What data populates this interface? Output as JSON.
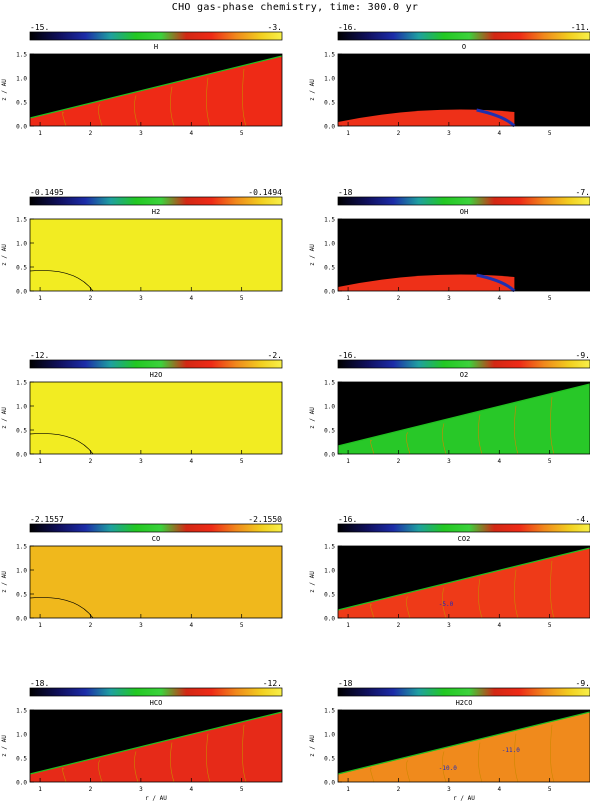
{
  "title": "CHO gas-phase chemistry, time: 300.0 yr",
  "chart_data": [
    {
      "type": "heatmap",
      "species": "H",
      "cbar_min": "-15.",
      "cbar_max": "-3.",
      "xlabel": "",
      "ylabel": "z / AU",
      "xticks": [
        "1",
        "2",
        "3",
        "4",
        "5"
      ],
      "yticks": [
        "0.0",
        "0.5",
        "1.0",
        "1.5"
      ],
      "xlim": [
        0.8,
        5.8
      ],
      "ylim": [
        0,
        1.5
      ],
      "fill": "#ee2a16",
      "dark_region": "upper-left",
      "contour_labels": []
    },
    {
      "type": "heatmap",
      "species": "O",
      "cbar_min": "-16.",
      "cbar_max": "-11.",
      "xlabel": "",
      "ylabel": "z / AU",
      "xticks": [
        "1",
        "2",
        "3",
        "4",
        "5"
      ],
      "yticks": [
        "0.0",
        "0.5",
        "1.0",
        "1.5"
      ],
      "xlim": [
        0.8,
        5.8
      ],
      "ylim": [
        0,
        1.5
      ],
      "fill": "#000000",
      "dark_region": "most",
      "contour_labels": []
    },
    {
      "type": "heatmap",
      "species": "H2",
      "cbar_min": "-0.1495",
      "cbar_max": "-0.1494",
      "xlabel": "",
      "ylabel": "z / AU",
      "xticks": [
        "1",
        "2",
        "3",
        "4",
        "5"
      ],
      "yticks": [
        "0.0",
        "0.5",
        "1.0",
        "1.5"
      ],
      "xlim": [
        0.8,
        5.8
      ],
      "ylim": [
        0,
        1.5
      ],
      "fill": "#f2ec22",
      "dark_region": "none",
      "contour_labels": []
    },
    {
      "type": "heatmap",
      "species": "OH",
      "cbar_min": "-18",
      "cbar_max": "-7.",
      "xlabel": "",
      "ylabel": "z / AU",
      "xticks": [
        "1",
        "2",
        "3",
        "4",
        "5"
      ],
      "yticks": [
        "0.0",
        "0.5",
        "1.0",
        "1.5"
      ],
      "xlim": [
        0.8,
        5.8
      ],
      "ylim": [
        0,
        1.5
      ],
      "fill": "#000000",
      "dark_region": "most",
      "contour_labels": []
    },
    {
      "type": "heatmap",
      "species": "H2O",
      "cbar_min": "-12.",
      "cbar_max": "-2.",
      "xlabel": "",
      "ylabel": "z / AU",
      "xticks": [
        "1",
        "2",
        "3",
        "4",
        "5"
      ],
      "yticks": [
        "0.0",
        "0.5",
        "1.0",
        "1.5"
      ],
      "xlim": [
        0.8,
        5.8
      ],
      "ylim": [
        0,
        1.5
      ],
      "fill": "#f2ec22",
      "dark_region": "none",
      "contour_labels": []
    },
    {
      "type": "heatmap",
      "species": "O2",
      "cbar_min": "-16.",
      "cbar_max": "-9.",
      "xlabel": "",
      "ylabel": "z / AU",
      "xticks": [
        "1",
        "2",
        "3",
        "4",
        "5"
      ],
      "yticks": [
        "0.0",
        "0.5",
        "1.0",
        "1.5"
      ],
      "xlim": [
        0.8,
        5.8
      ],
      "ylim": [
        0,
        1.5
      ],
      "fill": "#28c828",
      "dark_region": "upper-left",
      "contour_labels": []
    },
    {
      "type": "heatmap",
      "species": "CO",
      "cbar_min": "-2.1557",
      "cbar_max": "-2.1550",
      "xlabel": "",
      "ylabel": "z / AU",
      "xticks": [
        "1",
        "2",
        "3",
        "4",
        "5"
      ],
      "yticks": [
        "0.0",
        "0.5",
        "1.0",
        "1.5"
      ],
      "xlim": [
        0.8,
        5.8
      ],
      "ylim": [
        0,
        1.5
      ],
      "fill": "#f0b81c",
      "dark_region": "none",
      "contour_labels": []
    },
    {
      "type": "heatmap",
      "species": "CO2",
      "cbar_min": "-16.",
      "cbar_max": "-4.",
      "xlabel": "",
      "ylabel": "z / AU",
      "xticks": [
        "1",
        "2",
        "3",
        "4",
        "5"
      ],
      "yticks": [
        "0.0",
        "0.5",
        "1.0",
        "1.5"
      ],
      "xlim": [
        0.8,
        5.8
      ],
      "ylim": [
        0,
        1.5
      ],
      "fill": "#ee3a18",
      "dark_region": "upper-left",
      "contour_labels": [
        "-5.0"
      ]
    },
    {
      "type": "heatmap",
      "species": "HCO",
      "cbar_min": "-18.",
      "cbar_max": "-12.",
      "xlabel": "r / AU",
      "ylabel": "z / AU",
      "xticks": [
        "1",
        "2",
        "3",
        "4",
        "5"
      ],
      "yticks": [
        "0.0",
        "0.5",
        "1.0",
        "1.5"
      ],
      "xlim": [
        0.8,
        5.8
      ],
      "ylim": [
        0,
        1.5
      ],
      "fill": "#e62a18",
      "dark_region": "upper-left",
      "contour_labels": []
    },
    {
      "type": "heatmap",
      "species": "H2CO",
      "cbar_min": "-18",
      "cbar_max": "-9.",
      "xlabel": "r / AU",
      "ylabel": "z / AU",
      "xticks": [
        "1",
        "2",
        "3",
        "4",
        "5"
      ],
      "yticks": [
        "0.0",
        "0.5",
        "1.0",
        "1.5"
      ],
      "xlim": [
        0.8,
        5.8
      ],
      "ylim": [
        0,
        1.5
      ],
      "fill": "#f08a1c",
      "dark_region": "upper-left",
      "contour_labels": [
        "-10.0",
        "-11.0"
      ]
    }
  ]
}
